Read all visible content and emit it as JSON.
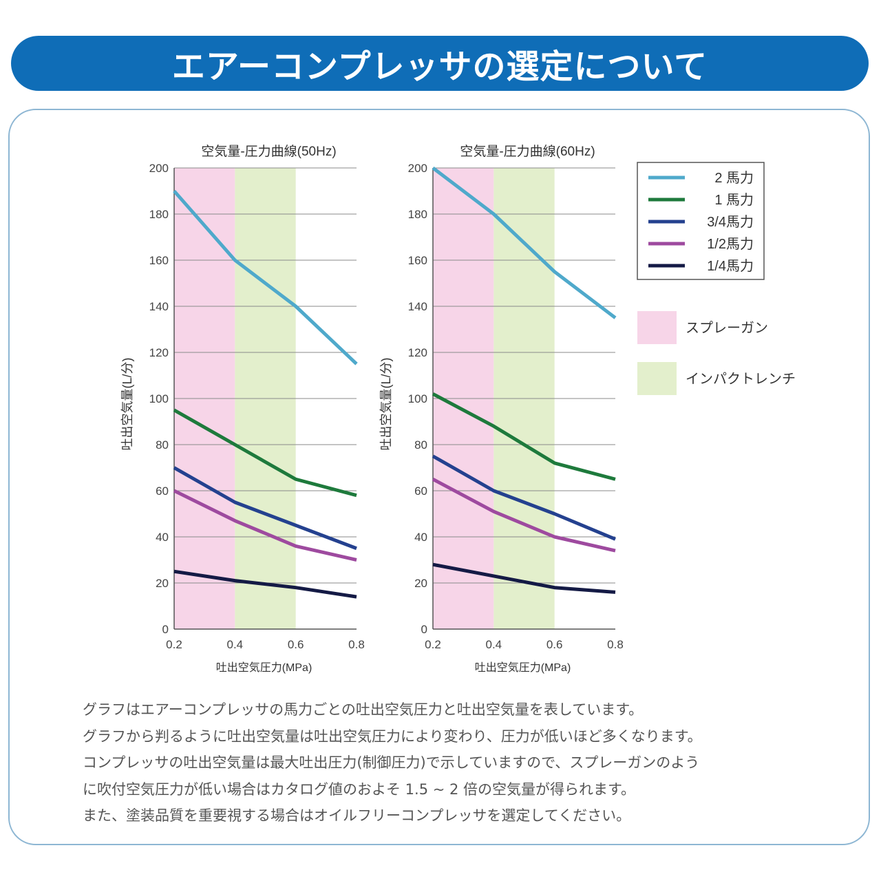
{
  "header": {
    "title": "エアーコンプレッサの選定について"
  },
  "chart_data": [
    {
      "type": "line",
      "title": "空気量-圧力曲線(50Hz)",
      "xlabel": "吐出空気圧力(MPa)",
      "ylabel": "吐出空気量(L/分)",
      "xlim": [
        0.2,
        0.8
      ],
      "ylim": [
        0,
        200
      ],
      "x_ticks": [
        "0.2",
        "0.4",
        "0.6",
        "0.8"
      ],
      "y_ticks": [
        "0",
        "20",
        "40",
        "60",
        "80",
        "100",
        "120",
        "140",
        "160",
        "180",
        "200"
      ],
      "x": [
        0.2,
        0.4,
        0.6,
        0.8
      ],
      "series": [
        {
          "name": "2 馬力",
          "values": [
            190,
            160,
            140,
            115
          ]
        },
        {
          "name": "1 馬力",
          "values": [
            95,
            80,
            65,
            58
          ]
        },
        {
          "name": "3/4馬力",
          "values": [
            70,
            55,
            45,
            35
          ]
        },
        {
          "name": "1/2馬力",
          "values": [
            60,
            47,
            36,
            30
          ]
        },
        {
          "name": "1/4馬力",
          "values": [
            25,
            21,
            18,
            14
          ]
        }
      ],
      "bands": [
        {
          "name": "スプレーガン",
          "from": 0.2,
          "to": 0.4
        },
        {
          "name": "インパクトレンチ",
          "from": 0.4,
          "to": 0.6
        }
      ],
      "grid": true
    },
    {
      "type": "line",
      "title": "空気量-圧力曲線(60Hz)",
      "xlabel": "吐出空気圧力(MPa)",
      "ylabel": "吐出空気量(L/分)",
      "xlim": [
        0.2,
        0.8
      ],
      "ylim": [
        0,
        200
      ],
      "x_ticks": [
        "0.2",
        "0.4",
        "0.6",
        "0.8"
      ],
      "y_ticks": [
        "0",
        "20",
        "40",
        "60",
        "80",
        "100",
        "120",
        "140",
        "160",
        "180",
        "200"
      ],
      "x": [
        0.2,
        0.4,
        0.6,
        0.8
      ],
      "series": [
        {
          "name": "2 馬力",
          "values": [
            200,
            180,
            155,
            135
          ]
        },
        {
          "name": "1 馬力",
          "values": [
            102,
            88,
            72,
            65
          ]
        },
        {
          "name": "3/4馬力",
          "values": [
            75,
            60,
            50,
            39
          ]
        },
        {
          "name": "1/2馬力",
          "values": [
            65,
            51,
            40,
            34
          ]
        },
        {
          "name": "1/4馬力",
          "values": [
            28,
            23,
            18,
            16
          ]
        }
      ],
      "bands": [
        {
          "name": "スプレーガン",
          "from": 0.2,
          "to": 0.4
        },
        {
          "name": "インパクトレンチ",
          "from": 0.4,
          "to": 0.6
        }
      ],
      "grid": true
    }
  ],
  "legend": {
    "placement": "right",
    "series": [
      {
        "label": " 2 馬力",
        "color": "#4fa9cb"
      },
      {
        "label": " 1 馬力",
        "color": "#1e7a3c"
      },
      {
        "label": "3/4馬力",
        "color": "#24418f"
      },
      {
        "label": "1/2馬力",
        "color": "#9e4a9f"
      },
      {
        "label": "1/4馬力",
        "color": "#141a45"
      }
    ],
    "bands": [
      {
        "label": "スプレーガン",
        "color": "#f7d5e8"
      },
      {
        "label": "インパクトレンチ",
        "color": "#e3efcc"
      }
    ]
  },
  "notes": [
    "グラフはエアーコンプレッサの馬力ごとの吐出空気圧力と吐出空気量を表しています。",
    "グラフから判るように吐出空気量は吐出空気圧力により変わり、圧力が低いほど多くなります。",
    "コンプレッサの吐出空気量は最大吐出圧力(制御圧力)で示していますので、スプレーガンのよう",
    "に吹付空気圧力が低い場合はカタログ値のおよそ 1.5 ~ 2 倍の空気量が得られます。",
    "また、塗装品質を重要視する場合はオイルフリーコンプレッサを選定してください。"
  ]
}
